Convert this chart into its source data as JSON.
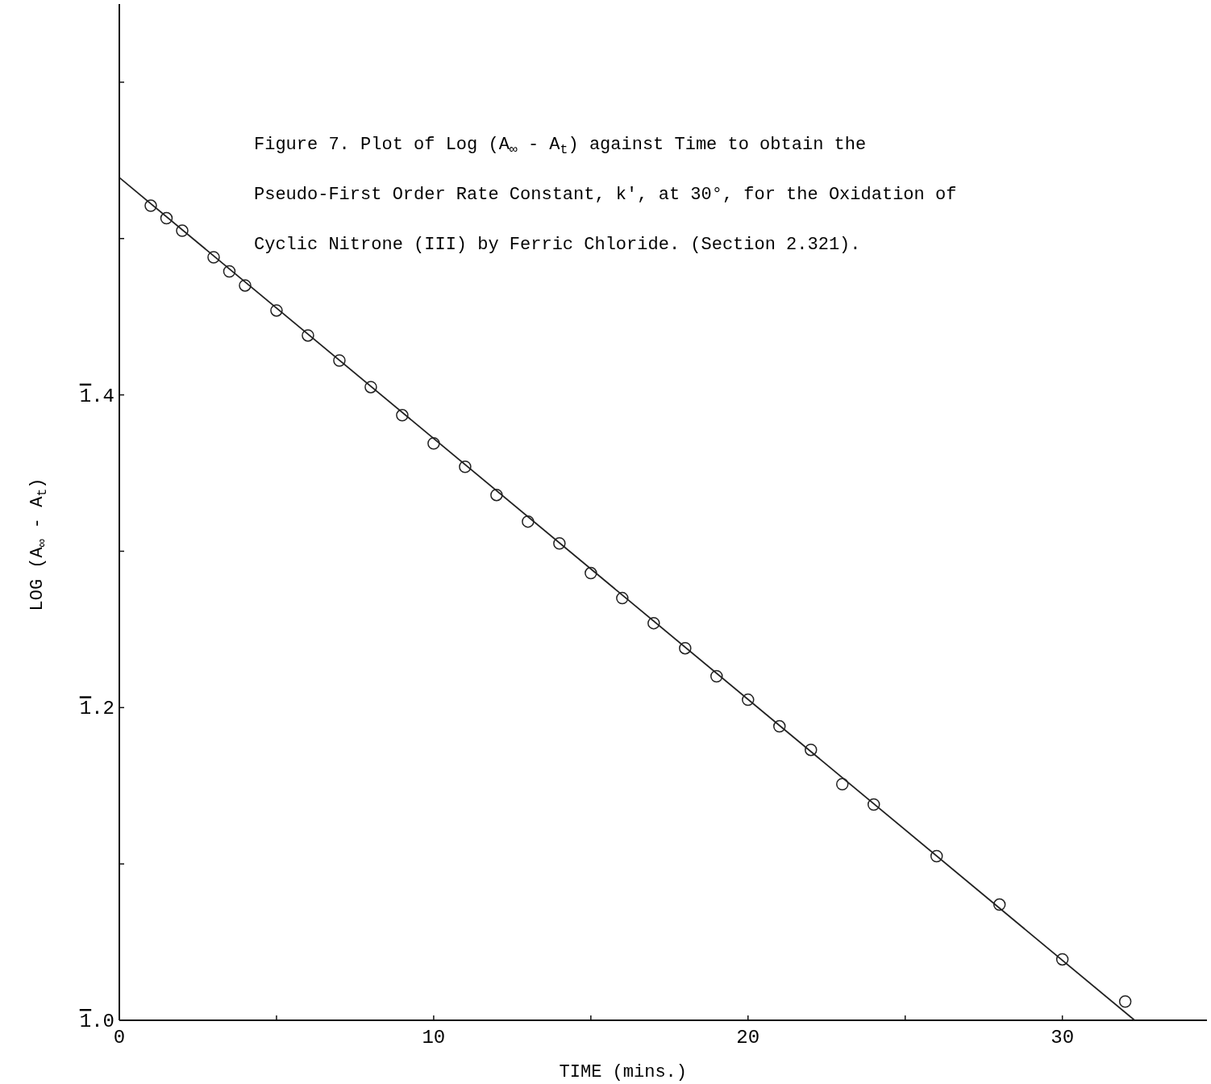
{
  "chart_data": {
    "type": "scatter",
    "title": "Figure 7.   Plot of Log (A$_{∞}$ - A$_{t}$) against Time to obtain the Pseudo-First Order Rate Constant, k', at 30°, for the Oxidation of Cyclic Nitrone (III) by Ferric Chloride.   (Section 2.321).",
    "xlabel": "TIME   (mins.)",
    "ylabel": "LOG  (A$_{∞}$ - A$_{t}$)",
    "xlim": [
      0,
      34.6
    ],
    "ylim": [
      1.0,
      1.65
    ],
    "xticks": [
      0,
      {
        "value": 5,
        "label": null
      },
      10,
      {
        "value": 15,
        "label": null
      },
      20,
      {
        "value": 25,
        "label": null
      },
      30
    ],
    "yticks": [
      {
        "value": 1.0,
        "label": "1.0"
      },
      {
        "value": 1.1,
        "label": null
      },
      {
        "value": 1.2,
        "label": "1.2"
      },
      {
        "value": 1.3,
        "label": null
      },
      {
        "value": 1.4,
        "label": "1.4"
      },
      {
        "value": 1.5,
        "label": null
      },
      {
        "value": 1.6,
        "label": null
      }
    ],
    "grid": false,
    "series": [
      {
        "color": "#222222",
        "marker": "circle",
        "x": [
          1,
          1.5,
          2,
          3,
          3.5,
          4,
          5,
          6,
          7,
          8,
          9,
          10,
          11,
          12,
          13,
          14,
          15,
          16,
          17,
          18,
          19,
          20,
          21,
          22,
          23,
          24,
          26,
          28,
          30,
          32
        ],
        "values": [
          1.521,
          1.513,
          1.505,
          1.488,
          1.479,
          1.47,
          1.454,
          1.438,
          1.422,
          1.405,
          1.387,
          1.369,
          1.354,
          1.336,
          1.319,
          1.305,
          1.286,
          1.27,
          1.254,
          1.238,
          1.22,
          1.205,
          1.188,
          1.173,
          1.151,
          1.138,
          1.105,
          1.074,
          1.039,
          1.012
        ]
      },
      {
        "type": "line",
        "color": "#222222",
        "marker": "none",
        "line_style": "solid",
        "x": [
          0,
          32.3
        ],
        "values": [
          1.539,
          1.0
        ]
      }
    ]
  }
}
